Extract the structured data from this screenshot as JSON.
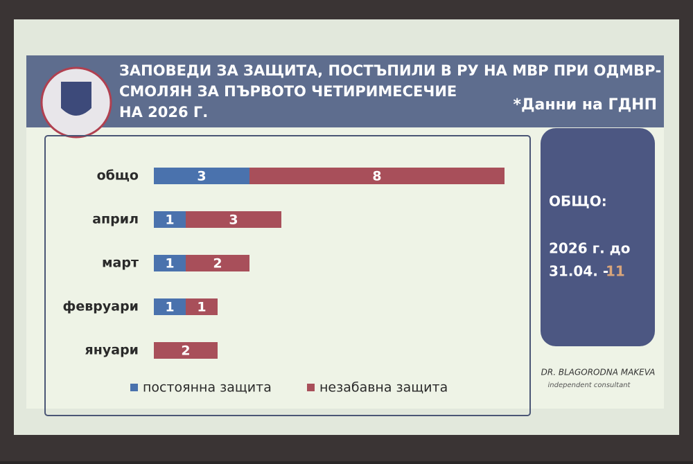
{
  "chart_data": {
    "type": "stacked-barh",
    "title": [
      "ЗАПОВЕДИ ЗА ЗАЩИТА, ПОСТЪПИЛИ В РУ НА МВР ПРИ ОДМВР-",
      "СМОЛЯН ЗА ПЪРВОТО ЧЕТИРИМЕСЕЧИЕ",
      "НА 2026 Г."
    ],
    "note": "*Данни на ГДНП",
    "categories": [
      "общо",
      "април",
      "март",
      "февруари",
      "януари"
    ],
    "series": [
      {
        "name": "постоянна защита",
        "color": "#4a72ad",
        "values": [
          3,
          1,
          1,
          1,
          null
        ]
      },
      {
        "name": "незабавна защита",
        "color": "#a84f5a",
        "values": [
          8,
          3,
          2,
          1,
          2
        ]
      }
    ],
    "summary": {
      "heading": "ОБЩО:",
      "line1": "2026 г. до",
      "line2": "31.04. -",
      "total": 11
    },
    "signature": {
      "name": "DR. BLAGORODNA MAKEVA",
      "role": "independent consultant"
    }
  }
}
